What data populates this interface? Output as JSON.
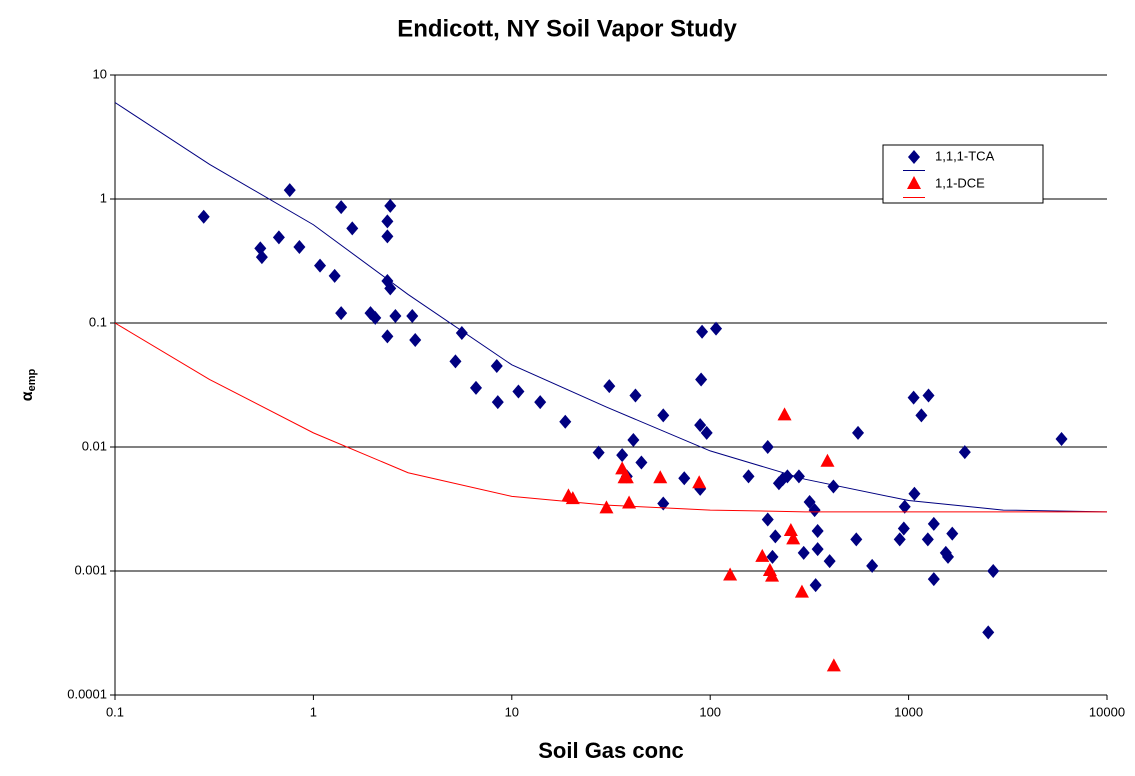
{
  "chart_data": {
    "type": "scatter",
    "title": "Endicott, NY Soil Vapor Study",
    "xlabel": "Soil Gas conc",
    "ylabel": {
      "main": "α",
      "sub": "emp"
    },
    "xscale": "log",
    "yscale": "log",
    "xlim": [
      0.1,
      10000
    ],
    "ylim": [
      0.0001,
      10
    ],
    "xticks": [
      0.1,
      1,
      10,
      100,
      1000,
      10000
    ],
    "yticks": [
      0.0001,
      0.001,
      0.01,
      0.1,
      1,
      10
    ],
    "grid": "y",
    "legend": "upper right",
    "series": [
      {
        "name": "1,1,1-TCA",
        "color": "#000080",
        "marker": "diamond",
        "x": [
          0.28,
          0.54,
          0.55,
          0.67,
          0.76,
          0.85,
          1.08,
          1.28,
          1.38,
          1.38,
          1.57,
          1.94,
          2.05,
          2.36,
          2.36,
          2.36,
          2.36,
          2.44,
          2.44,
          2.59,
          3.15,
          3.26,
          5.2,
          5.6,
          6.6,
          8.4,
          8.5,
          10.8,
          13.9,
          18.6,
          27.4,
          31,
          36,
          41,
          42,
          45,
          38,
          58,
          58,
          74,
          89,
          89,
          90,
          91,
          96,
          107,
          156,
          195,
          195,
          206,
          213,
          222,
          232,
          245,
          280,
          296,
          317,
          336,
          348,
          348,
          340,
          400,
          418,
          545,
          556,
          655,
          902,
          946,
          956,
          1070,
          1060,
          1160,
          1260,
          1250,
          1340,
          1340,
          1540,
          1580,
          1660,
          1920,
          2670,
          2520,
          5900
        ],
        "values": [
          0.72,
          0.4,
          0.34,
          0.49,
          1.18,
          0.41,
          0.29,
          0.24,
          0.86,
          0.12,
          0.58,
          0.12,
          0.11,
          0.5,
          0.66,
          0.218,
          0.078,
          0.88,
          0.19,
          0.114,
          0.114,
          0.073,
          0.049,
          0.083,
          0.03,
          0.045,
          0.023,
          0.028,
          0.023,
          0.016,
          0.009,
          0.031,
          0.0086,
          0.0114,
          0.026,
          0.0075,
          0.0058,
          0.018,
          0.0035,
          0.0056,
          0.015,
          0.0046,
          0.035,
          0.085,
          0.013,
          0.09,
          0.0058,
          0.01,
          0.0026,
          0.0013,
          0.0019,
          0.0051,
          0.0055,
          0.0058,
          0.0058,
          0.0014,
          0.0036,
          0.0031,
          0.0021,
          0.0015,
          0.00077,
          0.0012,
          0.0048,
          0.0018,
          0.013,
          0.0011,
          0.0018,
          0.0022,
          0.0033,
          0.0042,
          0.025,
          0.018,
          0.026,
          0.0018,
          0.0024,
          0.00086,
          0.0014,
          0.0013,
          0.002,
          0.0091,
          0.001,
          0.00032,
          0.0116
        ]
      },
      {
        "color": "#000080",
        "line": true,
        "x": [
          0.1,
          0.3,
          1,
          3,
          10,
          30,
          100,
          300,
          1000,
          3000,
          10000
        ],
        "values": [
          6,
          1.9,
          0.62,
          0.17,
          0.046,
          0.021,
          0.0093,
          0.0055,
          0.0037,
          0.0031,
          0.003
        ]
      },
      {
        "name": "1,1-DCE",
        "color": "#ff0000",
        "marker": "triangle",
        "x": [
          19.3,
          20.3,
          30,
          36,
          37,
          38,
          39,
          56,
          88,
          126,
          183,
          200,
          205,
          237,
          255,
          262,
          290,
          390,
          420
        ],
        "values": [
          0.004,
          0.0038,
          0.0032,
          0.0066,
          0.0056,
          0.0056,
          0.0035,
          0.0056,
          0.0051,
          0.00092,
          0.0013,
          0.001,
          0.0009,
          0.018,
          0.0021,
          0.0018,
          0.00067,
          0.0076,
          0.00017
        ]
      },
      {
        "color": "#ff0000",
        "line": true,
        "x": [
          0.1,
          0.3,
          1,
          3,
          10,
          30,
          100,
          300,
          1000,
          3000,
          10000
        ],
        "values": [
          0.1,
          0.035,
          0.013,
          0.0062,
          0.004,
          0.0034,
          0.0031,
          0.003,
          0.003,
          0.003,
          0.003
        ]
      }
    ]
  }
}
